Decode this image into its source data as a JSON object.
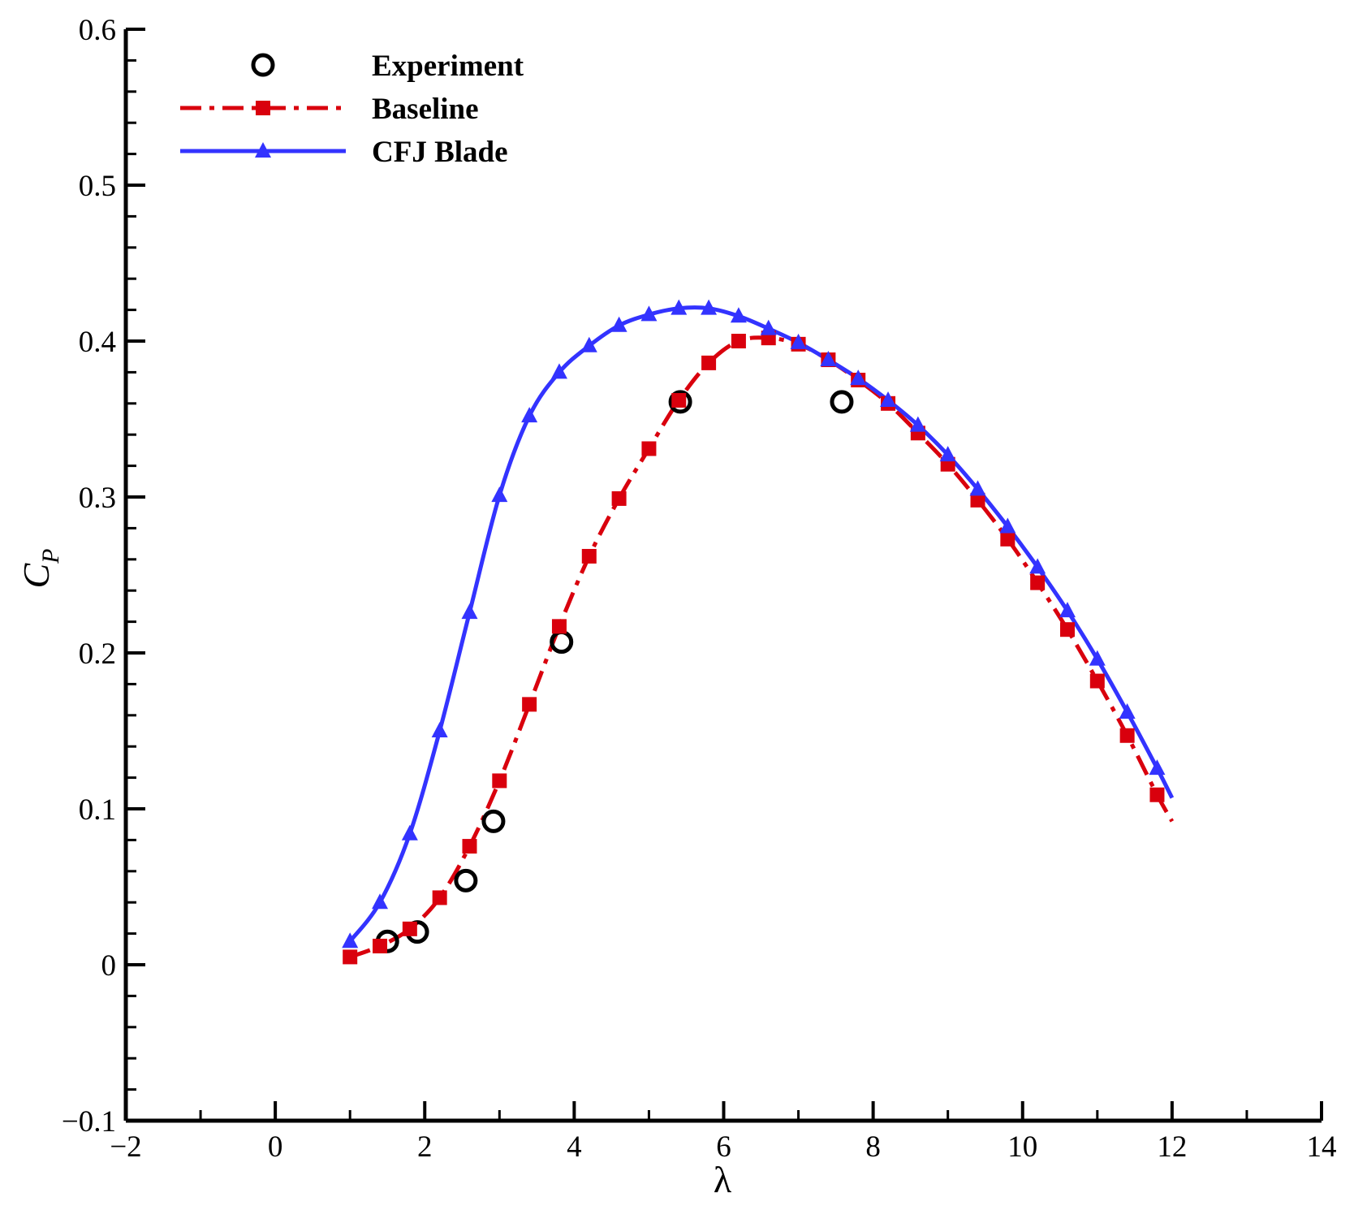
{
  "chart_data": {
    "type": "line",
    "title": "",
    "xlabel": "λ",
    "ylabel": "C",
    "ylabel_subscript": "P",
    "xlim": [
      -2,
      14
    ],
    "ylim": [
      -0.1,
      0.6
    ],
    "xticks": [
      -2,
      0,
      2,
      4,
      6,
      8,
      10,
      12,
      14
    ],
    "xtick_labels": [
      "−2",
      "0",
      "2",
      "4",
      "6",
      "8",
      "10",
      "12",
      "14"
    ],
    "yticks": [
      -0.1,
      0,
      0.1,
      0.2,
      0.3,
      0.4,
      0.5,
      0.6
    ],
    "ytick_labels": [
      "−0.1",
      "0",
      "0.1",
      "0.2",
      "0.3",
      "0.4",
      "0.5",
      "0.6"
    ],
    "grid": false,
    "legend_position": "top-left",
    "series": [
      {
        "name": "Experiment",
        "style": "markers",
        "marker": "open-circle",
        "color": "#000000",
        "x": [
          1.5,
          1.9,
          2.55,
          2.92,
          3.83,
          5.42,
          7.58
        ],
        "y": [
          0.015,
          0.021,
          0.054,
          0.092,
          0.207,
          0.361,
          0.361
        ]
      },
      {
        "name": "Baseline",
        "style": "dash-dot",
        "marker": "filled-square",
        "color": "#d9000d",
        "x": [
          1.0,
          1.4,
          1.8,
          2.2,
          2.6,
          3.0,
          3.4,
          3.8,
          4.2,
          4.6,
          5.0,
          5.4,
          5.8,
          6.2,
          6.6,
          7.0,
          7.4,
          7.8,
          8.2,
          8.6,
          9.0,
          9.4,
          9.8,
          10.2,
          10.6,
          11.0,
          11.4,
          11.8,
          12.0
        ],
        "y": [
          0.005,
          0.012,
          0.023,
          0.043,
          0.076,
          0.118,
          0.167,
          0.217,
          0.262,
          0.299,
          0.331,
          0.362,
          0.386,
          0.4,
          0.402,
          0.398,
          0.388,
          0.375,
          0.36,
          0.341,
          0.321,
          0.298,
          0.273,
          0.245,
          0.215,
          0.182,
          0.147,
          0.109,
          0.092
        ],
        "marker_count": 28
      },
      {
        "name": "CFJ Blade",
        "style": "solid",
        "marker": "filled-triangle",
        "color": "#3333ff",
        "x": [
          1.0,
          1.4,
          1.8,
          2.2,
          2.6,
          3.0,
          3.4,
          3.8,
          4.2,
          4.6,
          5.0,
          5.4,
          5.8,
          6.2,
          6.6,
          7.0,
          7.4,
          7.8,
          8.2,
          8.6,
          9.0,
          9.4,
          9.8,
          10.2,
          10.6,
          11.0,
          11.4,
          11.8,
          12.0
        ],
        "y": [
          0.015,
          0.04,
          0.084,
          0.15,
          0.226,
          0.301,
          0.352,
          0.38,
          0.397,
          0.41,
          0.417,
          0.421,
          0.421,
          0.416,
          0.408,
          0.399,
          0.388,
          0.376,
          0.362,
          0.346,
          0.327,
          0.305,
          0.281,
          0.255,
          0.227,
          0.196,
          0.162,
          0.126,
          0.107
        ],
        "marker_count": 28
      }
    ]
  }
}
